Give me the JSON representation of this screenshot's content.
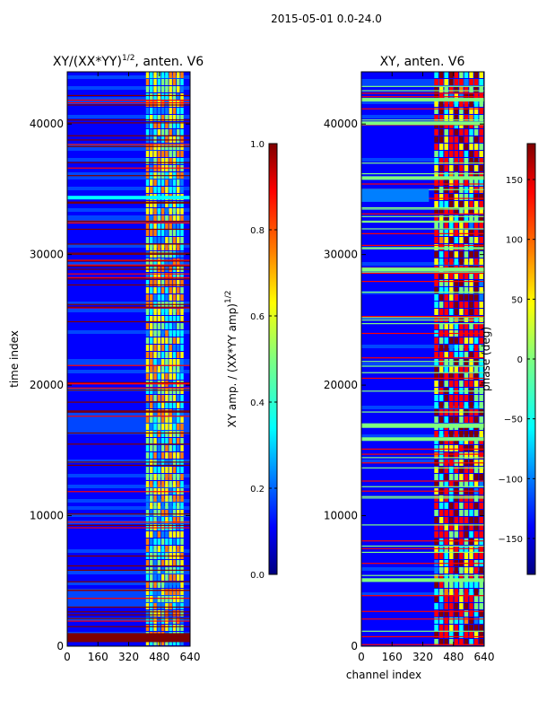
{
  "figure": {
    "suptitle": "2015-05-01 0.0-24.0",
    "xlabel": "channel index"
  },
  "colors": {
    "jet": [
      "#00007f",
      "#0000ff",
      "#007fff",
      "#00ffff",
      "#7fff7f",
      "#ffff00",
      "#ff7f00",
      "#ff0000",
      "#7f0000"
    ],
    "axis": "#000000",
    "background": "#ffffff",
    "gridline": "#ffffff"
  },
  "chart_data": [
    {
      "type": "heatmap",
      "title_main": "XY/(XX*YY)",
      "title_sup": "1/2",
      "title_tail": ", anten. V6",
      "xlabel": "",
      "ylabel": "time index",
      "xlim": [
        0,
        640
      ],
      "ylim": [
        0,
        44000
      ],
      "xticks": [
        0,
        160,
        320,
        480,
        640
      ],
      "yticks": [
        0,
        10000,
        20000,
        30000,
        40000
      ],
      "colorbar": {
        "label_main": "XY amp. / (XX*YY amp)",
        "label_sup": "1/2",
        "range": [
          0.0,
          1.0
        ],
        "ticks": [
          "0.0",
          "0.2",
          "0.4",
          "0.6",
          "0.8",
          "1.0"
        ],
        "tick_values": [
          0.0,
          0.2,
          0.4,
          0.6,
          0.8,
          1.0
        ]
      },
      "description_values": {
        "background_level": 0.05,
        "active_channel_range": [
          410,
          610
        ],
        "active_channel_level": 0.55,
        "flagged_rows_level": 1.0
      }
    },
    {
      "type": "heatmap",
      "title_main": "XY, anten. V6",
      "xlabel": "channel index",
      "ylabel": "",
      "xlim": [
        0,
        640
      ],
      "ylim": [
        0,
        44000
      ],
      "xticks": [
        0,
        160,
        320,
        480,
        640
      ],
      "yticks": [
        0,
        10000,
        20000,
        30000,
        40000
      ],
      "colorbar": {
        "label_main": "phase (deg)",
        "range": [
          -180,
          180
        ],
        "ticks": [
          "150",
          "100",
          "50",
          "0",
          "−50",
          "−100",
          "−150"
        ],
        "tick_values": [
          150,
          100,
          50,
          0,
          -50,
          -100,
          -150
        ]
      },
      "description_values": {
        "background_phase": -150,
        "active_channel_range": [
          380,
          640
        ],
        "active_channel_phase": 150
      }
    }
  ]
}
